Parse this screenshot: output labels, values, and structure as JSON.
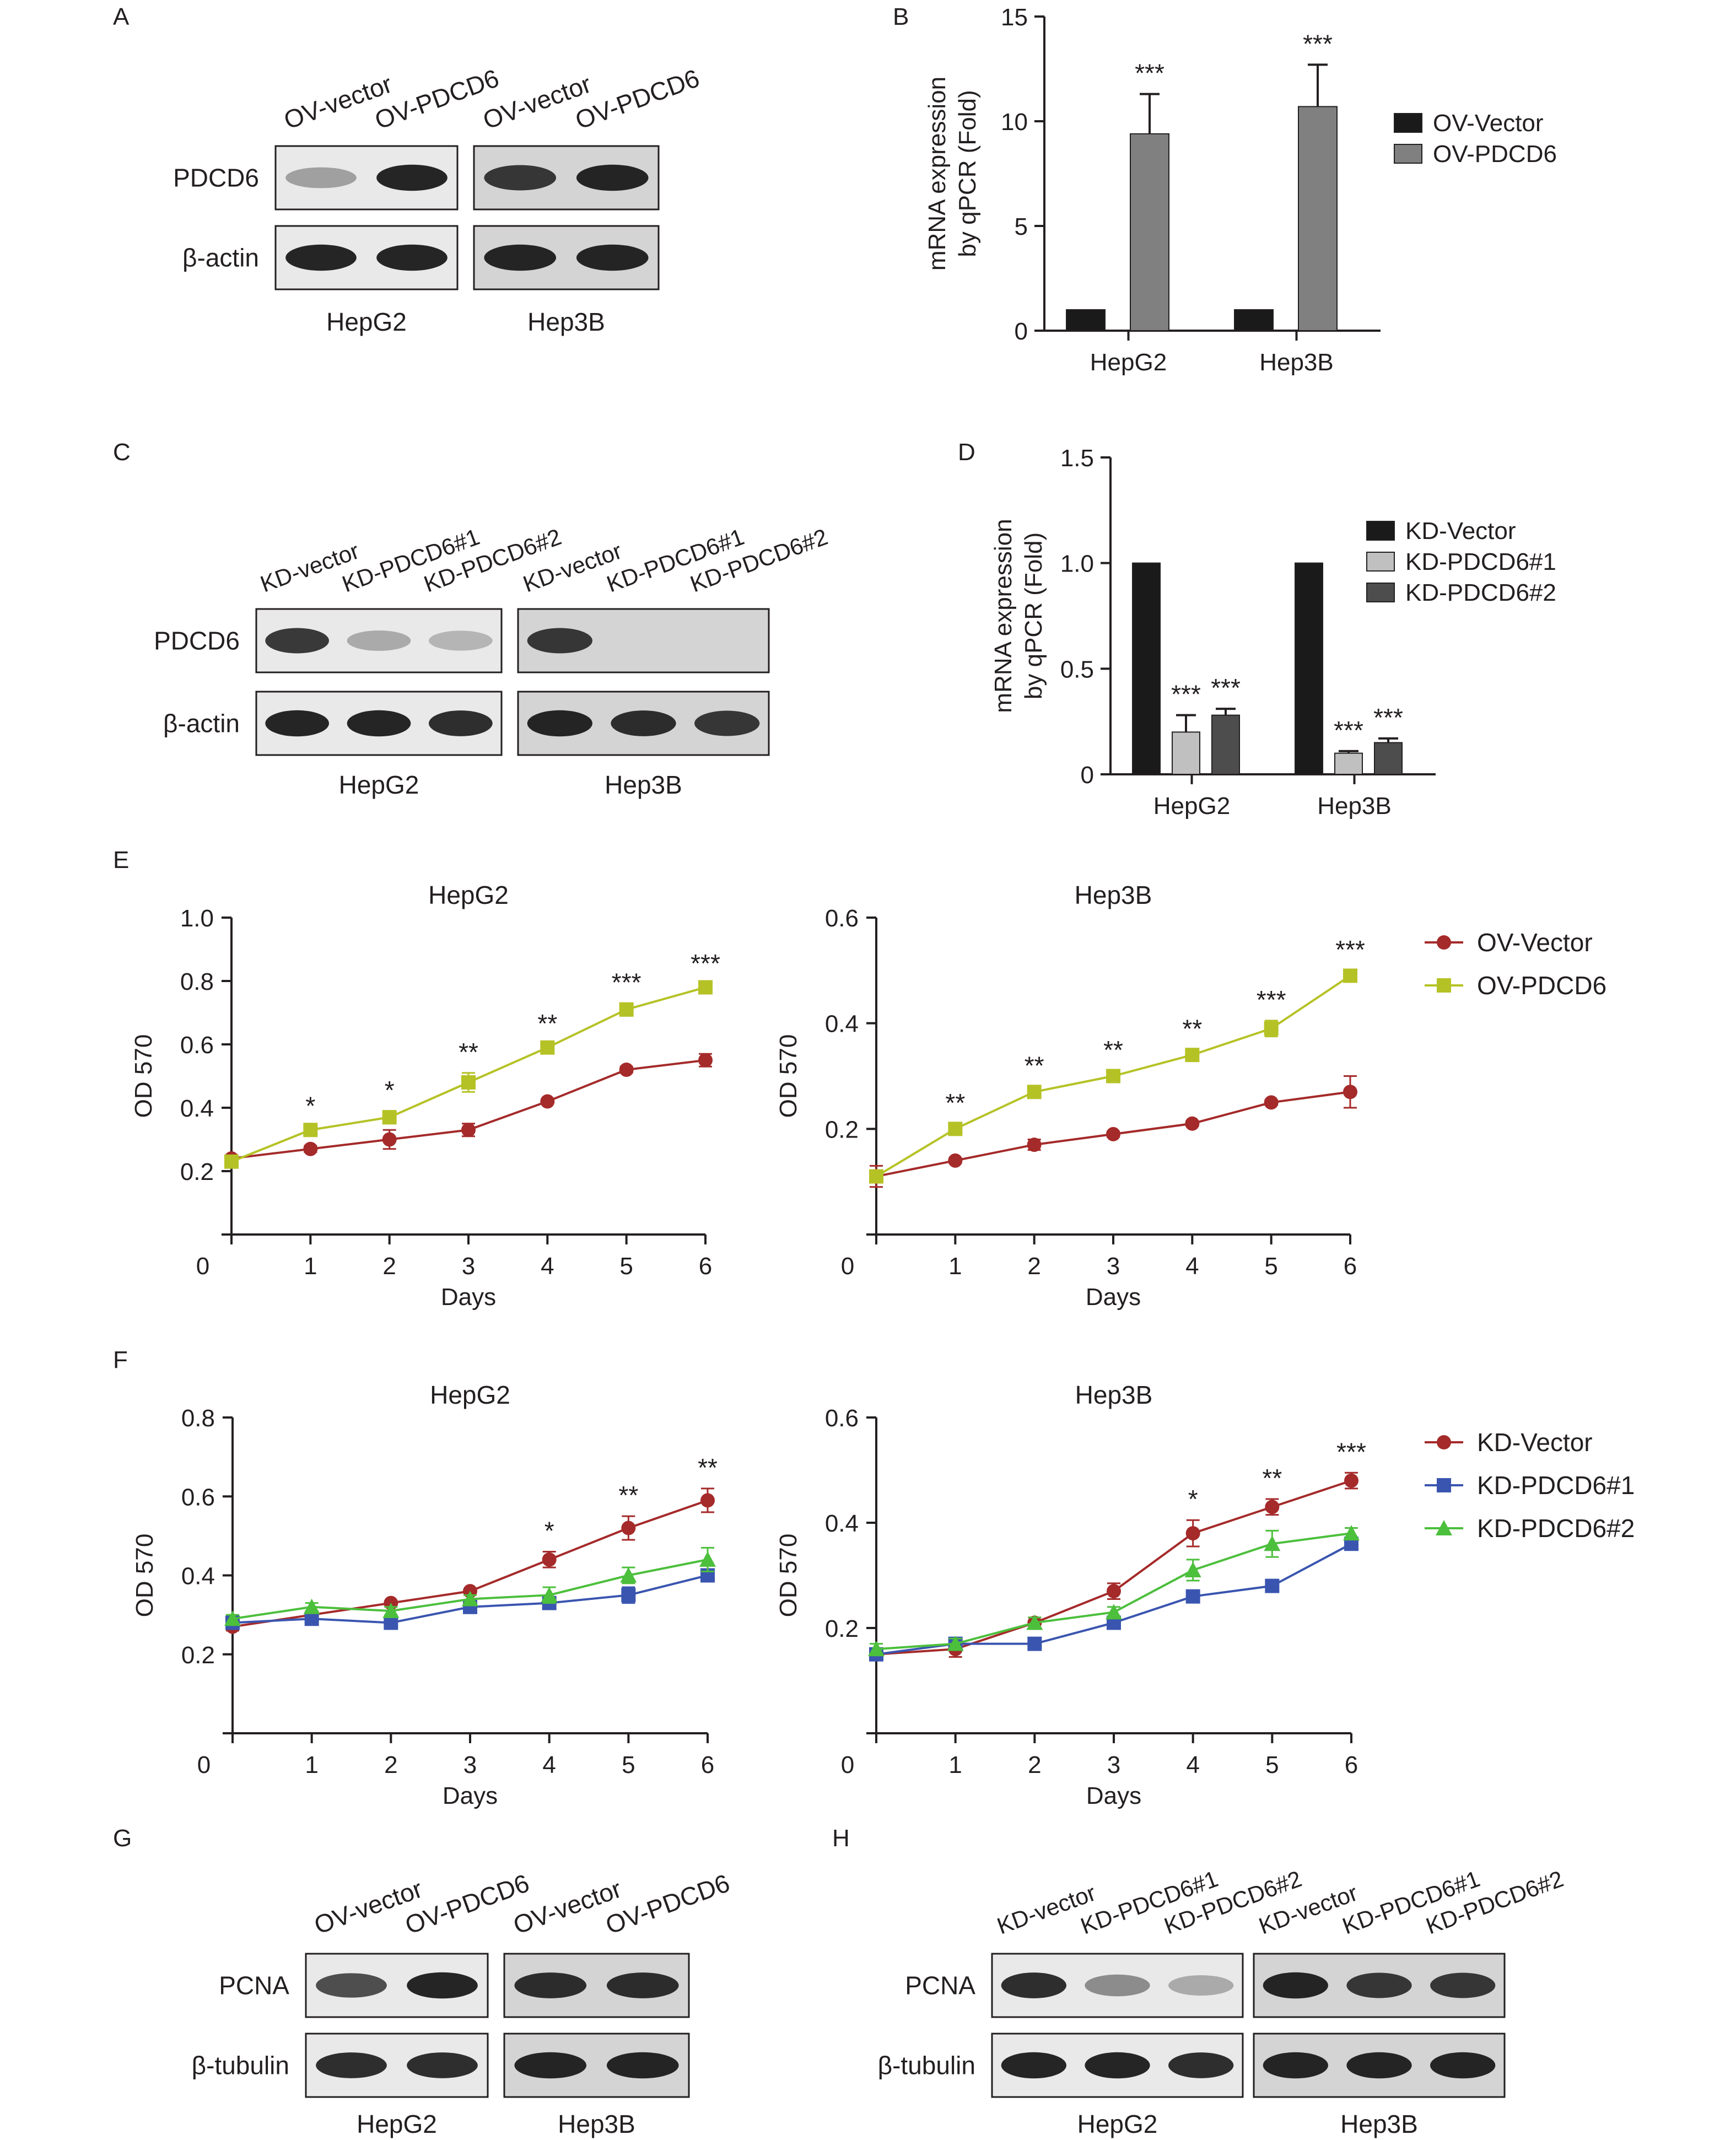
{
  "panel_labels": [
    "A",
    "B",
    "C",
    "D",
    "E",
    "F",
    "G",
    "H"
  ],
  "colors": {
    "axis": "#231f20",
    "bar_black": "#1a1a1a",
    "bar_gray": "#808080",
    "bar_light": "#c0c0c0",
    "bar_dark": "#4d4d4d",
    "ov_vector": "#a52a2a",
    "ov_pdcd6": "#b5c225",
    "kd_vector": "#a52a2a",
    "kd_pdcd6_1": "#3a55b0",
    "kd_pdcd6_2": "#4cbf3c",
    "blot_bg": "#e9e9e9",
    "blot_bg_dark": "#d4d4d4",
    "band": "#1a1a1a"
  },
  "blots": {
    "A": {
      "lanes": [
        "OV-vector",
        "OV-PDCD6",
        "OV-vector",
        "OV-PDCD6"
      ],
      "rows": [
        "PDCD6",
        "β-actin"
      ],
      "cell_lines": [
        "HepG2",
        "Hep3B"
      ],
      "band_intensity": [
        [
          0.35,
          0.95,
          0.85,
          0.95
        ],
        [
          0.95,
          0.95,
          0.95,
          0.95
        ]
      ]
    },
    "C": {
      "lanes": [
        "KD-vector",
        "KD-PDCD6#1",
        "KD-PDCD6#2",
        "KD-vector",
        "KD-PDCD6#1",
        "KD-PDCD6#2"
      ],
      "rows": [
        "PDCD6",
        "β-actin"
      ],
      "cell_lines": [
        "HepG2",
        "Hep3B"
      ],
      "band_intensity": [
        [
          0.85,
          0.3,
          0.25,
          0.85,
          0.0,
          0.0
        ],
        [
          0.95,
          0.95,
          0.9,
          0.95,
          0.9,
          0.85
        ]
      ]
    },
    "G": {
      "lanes": [
        "OV-vector",
        "OV-PDCD6",
        "OV-vector",
        "OV-PDCD6"
      ],
      "rows": [
        "PCNA",
        "β-tubulin"
      ],
      "cell_lines": [
        "HepG2",
        "Hep3B"
      ],
      "band_intensity": [
        [
          0.75,
          0.95,
          0.9,
          0.9
        ],
        [
          0.9,
          0.9,
          0.95,
          0.95
        ]
      ]
    },
    "H": {
      "lanes": [
        "KD-vector",
        "KD-PDCD6#1",
        "KD-PDCD6#2",
        "KD-vector",
        "KD-PDCD6#1",
        "KD-PDCD6#2"
      ],
      "rows": [
        "PCNA",
        "β-tubulin"
      ],
      "cell_lines": [
        "HepG2",
        "Hep3B"
      ],
      "band_intensity": [
        [
          0.9,
          0.45,
          0.3,
          0.95,
          0.85,
          0.85
        ],
        [
          0.95,
          0.95,
          0.9,
          0.95,
          0.95,
          0.95
        ]
      ]
    }
  },
  "chart_data": [
    {
      "panel": "B",
      "type": "bar",
      "categories": [
        "HepG2",
        "Hep3B"
      ],
      "series": [
        {
          "name": "OV-Vector",
          "color": "#1a1a1a",
          "values": [
            1.0,
            1.0
          ],
          "errors": [
            0,
            0
          ],
          "sig": [
            "",
            ""
          ]
        },
        {
          "name": "OV-PDCD6",
          "color": "#808080",
          "values": [
            9.4,
            10.7
          ],
          "errors": [
            1.9,
            2.0
          ],
          "sig": [
            "***",
            "***"
          ]
        }
      ],
      "ylabel": [
        "mRNA expression",
        "by qPCR (Fold)"
      ],
      "ylim": [
        0,
        15
      ],
      "yticks": [
        "0",
        "5",
        "10",
        "15"
      ],
      "legend_position": "right"
    },
    {
      "panel": "D",
      "type": "bar",
      "categories": [
        "HepG2",
        "Hep3B"
      ],
      "series": [
        {
          "name": "KD-Vector",
          "color": "#1a1a1a",
          "values": [
            1.0,
            1.0
          ],
          "errors": [
            0,
            0
          ],
          "sig": [
            "",
            ""
          ]
        },
        {
          "name": "KD-PDCD6#1",
          "color": "#c0c0c0",
          "values": [
            0.2,
            0.1
          ],
          "errors": [
            0.08,
            0.01
          ],
          "sig": [
            "***",
            "***"
          ]
        },
        {
          "name": "KD-PDCD6#2",
          "color": "#4d4d4d",
          "values": [
            0.28,
            0.15
          ],
          "errors": [
            0.03,
            0.02
          ],
          "sig": [
            "***",
            "***"
          ]
        }
      ],
      "ylabel": [
        "mRNA expression",
        "by qPCR (Fold)"
      ],
      "ylim": [
        0,
        1.5
      ],
      "yticks": [
        "0",
        "0.5",
        "1.0",
        "1.5"
      ],
      "legend_position": "right"
    },
    {
      "panel": "E",
      "type": "line",
      "title": "HepG2",
      "x": [
        0,
        1,
        2,
        3,
        4,
        5,
        6
      ],
      "xlabel": "Days",
      "ylabel": "OD 570",
      "ylim": [
        0,
        1.0
      ],
      "yticks": [
        "0.2",
        "0.4",
        "0.6",
        "0.8",
        "1.0"
      ],
      "series": [
        {
          "name": "OV-Vector",
          "marker": "circle",
          "color": "#a52a2a",
          "values": [
            0.24,
            0.27,
            0.3,
            0.33,
            0.42,
            0.52,
            0.55
          ],
          "errors": [
            0.01,
            0.01,
            0.03,
            0.02,
            0.005,
            0.01,
            0.02
          ]
        },
        {
          "name": "OV-PDCD6",
          "marker": "square",
          "color": "#b5c225",
          "values": [
            0.23,
            0.33,
            0.37,
            0.48,
            0.59,
            0.71,
            0.78
          ],
          "errors": [
            0.01,
            0.01,
            0.02,
            0.03,
            0.01,
            0.02,
            0.01
          ]
        }
      ],
      "sig": [
        "",
        "*",
        "*",
        "**",
        "**",
        "***",
        "***"
      ]
    },
    {
      "panel": "E",
      "type": "line",
      "title": "Hep3B",
      "x": [
        0,
        1,
        2,
        3,
        4,
        5,
        6
      ],
      "xlabel": "Days",
      "ylabel": "OD 570",
      "ylim": [
        0,
        0.6
      ],
      "yticks": [
        "0.2",
        "0.4",
        "0.6"
      ],
      "series": [
        {
          "name": "OV-Vector",
          "marker": "circle",
          "color": "#a52a2a",
          "values": [
            0.11,
            0.14,
            0.17,
            0.19,
            0.21,
            0.25,
            0.27
          ],
          "errors": [
            0.02,
            0.005,
            0.01,
            0.005,
            0.005,
            0.005,
            0.03
          ]
        },
        {
          "name": "OV-PDCD6",
          "marker": "square",
          "color": "#b5c225",
          "values": [
            0.11,
            0.2,
            0.27,
            0.3,
            0.34,
            0.39,
            0.49
          ],
          "errors": [
            0.01,
            0.01,
            0.01,
            0.01,
            0.01,
            0.015,
            0.01
          ]
        }
      ],
      "sig": [
        "",
        "**",
        "**",
        "**",
        "**",
        "***",
        "***"
      ]
    },
    {
      "panel": "F",
      "type": "line",
      "title": "HepG2",
      "x": [
        0,
        1,
        2,
        3,
        4,
        5,
        6
      ],
      "xlabel": "Days",
      "ylabel": "OD 570",
      "ylim": [
        0,
        0.8
      ],
      "yticks": [
        "0.2",
        "0.4",
        "0.6",
        "0.8"
      ],
      "series": [
        {
          "name": "KD-Vector",
          "marker": "circle",
          "color": "#a52a2a",
          "values": [
            0.27,
            0.3,
            0.33,
            0.36,
            0.44,
            0.52,
            0.59
          ],
          "errors": [
            0.01,
            0.01,
            0.005,
            0.005,
            0.02,
            0.03,
            0.03
          ]
        },
        {
          "name": "KD-PDCD6#1",
          "marker": "square",
          "color": "#3a55b0",
          "values": [
            0.28,
            0.29,
            0.28,
            0.32,
            0.33,
            0.35,
            0.4
          ],
          "errors": [
            0.01,
            0.01,
            0.01,
            0.01,
            0.015,
            0.02,
            0.015
          ]
        },
        {
          "name": "KD-PDCD6#2",
          "marker": "triangle",
          "color": "#4cbf3c",
          "values": [
            0.29,
            0.32,
            0.31,
            0.34,
            0.35,
            0.4,
            0.44
          ],
          "errors": [
            0.01,
            0.01,
            0.01,
            0.01,
            0.02,
            0.02,
            0.03
          ]
        }
      ],
      "sig": [
        "",
        "",
        "",
        "",
        "*",
        "**",
        "**"
      ]
    },
    {
      "panel": "F",
      "type": "line",
      "title": "Hep3B",
      "x": [
        0,
        1,
        2,
        3,
        4,
        5,
        6
      ],
      "xlabel": "Days",
      "ylabel": "OD 570",
      "ylim": [
        0,
        0.6
      ],
      "yticks": [
        "0.2",
        "0.4",
        "0.6"
      ],
      "series": [
        {
          "name": "KD-Vector",
          "marker": "circle",
          "color": "#a52a2a",
          "values": [
            0.15,
            0.16,
            0.21,
            0.27,
            0.38,
            0.43,
            0.48
          ],
          "errors": [
            0.01,
            0.015,
            0.01,
            0.015,
            0.025,
            0.015,
            0.015
          ]
        },
        {
          "name": "KD-PDCD6#1",
          "marker": "square",
          "color": "#3a55b0",
          "values": [
            0.15,
            0.17,
            0.17,
            0.21,
            0.26,
            0.28,
            0.36
          ],
          "errors": [
            0.01,
            0.01,
            0.005,
            0.005,
            0.01,
            0.005,
            0.005
          ]
        },
        {
          "name": "KD-PDCD6#2",
          "marker": "triangle",
          "color": "#4cbf3c",
          "values": [
            0.16,
            0.17,
            0.21,
            0.23,
            0.31,
            0.36,
            0.38
          ],
          "errors": [
            0.01,
            0.01,
            0.01,
            0.01,
            0.02,
            0.025,
            0.01
          ]
        }
      ],
      "sig": [
        "",
        "",
        "",
        "",
        "*",
        "**",
        "***"
      ]
    }
  ]
}
